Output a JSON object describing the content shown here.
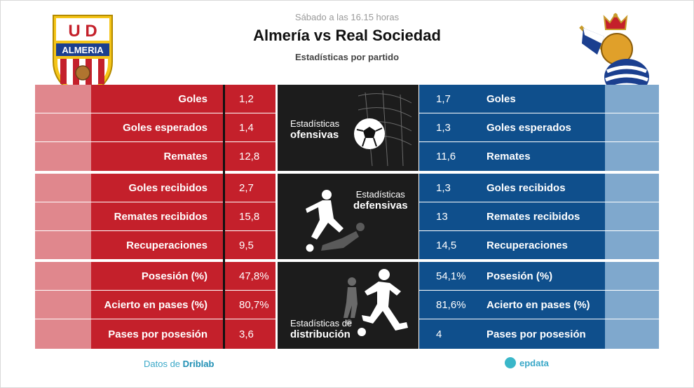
{
  "header": {
    "time": "Sábado a las 16.15 horas",
    "title": "Almería vs Real Sociedad",
    "subtitle": "Estadísticas por partido"
  },
  "home_team": {
    "crest_text_top": "U D",
    "crest_text_name": "ALMERIA",
    "color": "#c4202b",
    "pale_color": "#e0878d"
  },
  "away_team": {
    "color": "#0f4f8c",
    "pale_color": "#7fa8cd"
  },
  "sections": [
    {
      "title_a": "Estadísticas",
      "title_b": "ofensivas",
      "icon": "soccer-ball-net-icon"
    },
    {
      "title_a": "Estadísticas",
      "title_b": "defensivas",
      "icon": "tackle-players-icon"
    },
    {
      "title_a": "Estadísticas de",
      "title_b": "distribución",
      "icon": "kicking-player-icon"
    }
  ],
  "rows": [
    {
      "label": "Goles",
      "home": "1,2",
      "away": "1,7"
    },
    {
      "label": "Goles esperados",
      "home": "1,4",
      "away": "1,3"
    },
    {
      "label": "Remates",
      "home": "12,8",
      "away": "11,6"
    },
    {
      "label": "Goles recibidos",
      "home": "2,7",
      "away": "1,3"
    },
    {
      "label": "Remates recibidos",
      "home": "15,8",
      "away": "13"
    },
    {
      "label": "Recuperaciones",
      "home": "9,5",
      "away": "14,5"
    },
    {
      "label": "Posesión (%)",
      "home": "47,8%",
      "away": "54,1%"
    },
    {
      "label": "Acierto en pases (%)",
      "home": "80,7%",
      "away": "81,6%"
    },
    {
      "label": "Pases por posesión",
      "home": "3,6",
      "away": "4"
    }
  ],
  "footer": {
    "source_prefix": "Datos de",
    "source_name": "Driblab",
    "brand": "epdata"
  }
}
